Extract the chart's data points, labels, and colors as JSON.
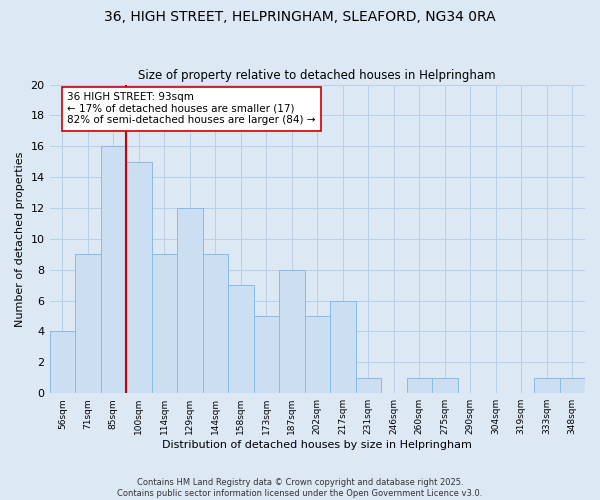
{
  "title": "36, HIGH STREET, HELPRINGHAM, SLEAFORD, NG34 0RA",
  "subtitle": "Size of property relative to detached houses in Helpringham",
  "xlabel": "Distribution of detached houses by size in Helpringham",
  "ylabel": "Number of detached properties",
  "bin_labels": [
    "56sqm",
    "71sqm",
    "85sqm",
    "100sqm",
    "114sqm",
    "129sqm",
    "144sqm",
    "158sqm",
    "173sqm",
    "187sqm",
    "202sqm",
    "217sqm",
    "231sqm",
    "246sqm",
    "260sqm",
    "275sqm",
    "290sqm",
    "304sqm",
    "319sqm",
    "333sqm",
    "348sqm"
  ],
  "bar_values": [
    4,
    9,
    16,
    15,
    9,
    12,
    9,
    7,
    5,
    8,
    5,
    6,
    1,
    0,
    1,
    1,
    0,
    0,
    0,
    1,
    1
  ],
  "bar_color": "#ccdff2",
  "bar_edge_color": "#88bbe8",
  "vline_x": 2.5,
  "vline_color": "#cc0000",
  "annotation_text": "36 HIGH STREET: 93sqm\n← 17% of detached houses are smaller (17)\n82% of semi-detached houses are larger (84) →",
  "annotation_box_color": "#ffffff",
  "annotation_box_edge": "#cc0000",
  "ylim": [
    0,
    20
  ],
  "yticks": [
    0,
    2,
    4,
    6,
    8,
    10,
    12,
    14,
    16,
    18,
    20
  ],
  "grid_color": "#b8cfe8",
  "background_color": "#dde8f5",
  "footer_text": "Contains HM Land Registry data © Crown copyright and database right 2025.\nContains public sector information licensed under the Open Government Licence v3.0.",
  "title_fontsize": 10,
  "subtitle_fontsize": 8.5,
  "xlabel_fontsize": 8,
  "ylabel_fontsize": 8,
  "annotation_fontsize": 7.5,
  "footer_fontsize": 6
}
